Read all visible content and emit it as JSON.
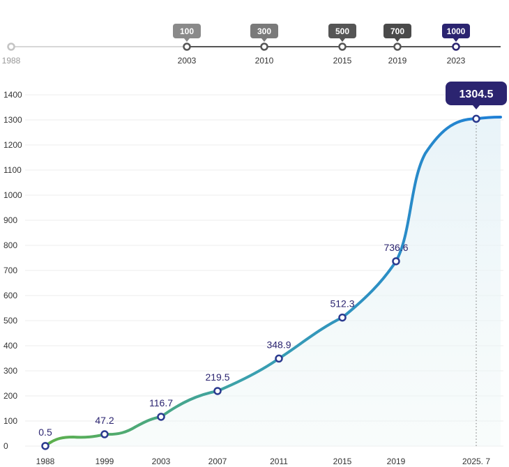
{
  "timeline": {
    "start_label": "1988",
    "milestones": [
      {
        "value": "100",
        "year": "2003"
      },
      {
        "value": "300",
        "year": "2010"
      },
      {
        "value": "500",
        "year": "2015"
      },
      {
        "value": "700",
        "year": "2019"
      },
      {
        "value": "1000",
        "year": "2023"
      }
    ],
    "colors": [
      "#8a8a8a",
      "#7a7a7a",
      "#555555",
      "#4a4a4a",
      "#2b2470"
    ]
  },
  "chart_data": {
    "type": "line",
    "title": "",
    "xlabel": "",
    "ylabel": "",
    "ylim": [
      0,
      1400
    ],
    "y_ticks": [
      0,
      100,
      200,
      300,
      400,
      500,
      600,
      700,
      800,
      900,
      1000,
      1100,
      1200,
      1300,
      1400
    ],
    "x_tick_labels": [
      "1988",
      "1999",
      "2003",
      "2007",
      "2011",
      "2015",
      "2019",
      "2025. 7"
    ],
    "points": [
      {
        "x": "1988",
        "y": 0.5,
        "label": "0.5"
      },
      {
        "x": "1999",
        "y": 47.2,
        "label": "47.2"
      },
      {
        "x": "2003",
        "y": 116.7,
        "label": "116.7"
      },
      {
        "x": "2007",
        "y": 219.5,
        "label": "219.5"
      },
      {
        "x": "2011",
        "y": 348.9,
        "label": "348.9"
      },
      {
        "x": "2015",
        "y": 512.3,
        "label": "512.3"
      },
      {
        "x": "2019",
        "y": 736.6,
        "label": "736.6"
      },
      {
        "x": "2025. 7",
        "y": 1304.5,
        "label": "1304.5",
        "highlight": true
      }
    ],
    "grid": true,
    "colors": {
      "start": "#5db04a",
      "mid": "#3aa0b0",
      "end": "#1f7fd6",
      "marker": "#2b3a8f",
      "callout": "#2b2470",
      "label": "#2b2470"
    }
  }
}
